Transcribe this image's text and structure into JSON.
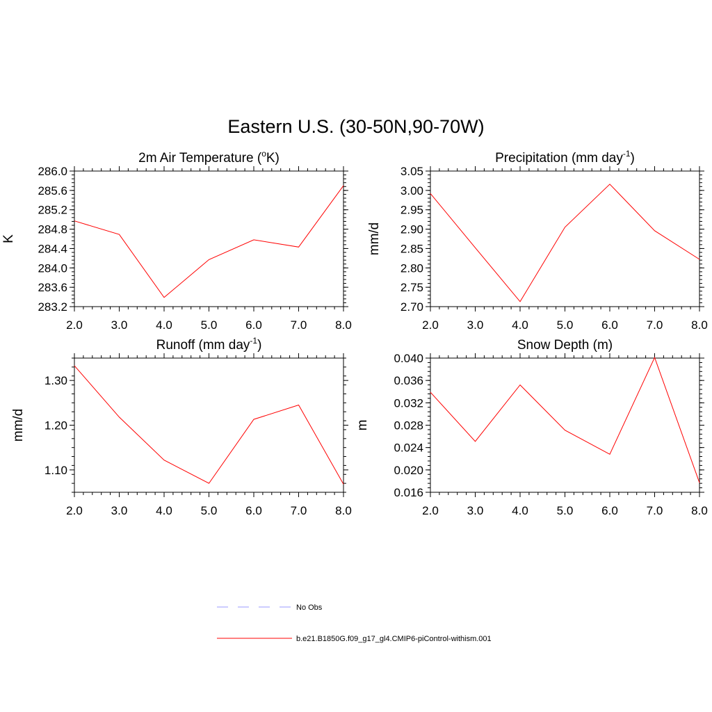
{
  "figure": {
    "title": "Eastern U.S. (30-50N,90-70W)"
  },
  "chart_data": [
    {
      "type": "line",
      "title": "2m Air Temperature (°K)",
      "title_parts": [
        "2m Air Temperature (",
        "o",
        "K)"
      ],
      "ylabel": "K",
      "x": [
        2,
        3,
        4,
        5,
        6,
        7,
        8
      ],
      "xticks": [
        "2.0",
        "3.0",
        "4.0",
        "5.0",
        "6.0",
        "7.0",
        "8.0"
      ],
      "xlim": [
        2,
        8
      ],
      "ylim": [
        283.2,
        286.0
      ],
      "yticks": [
        "283.2",
        "283.6",
        "284.0",
        "284.4",
        "284.8",
        "285.2",
        "285.6",
        "286.0"
      ],
      "ytick_values": [
        283.2,
        283.6,
        284.0,
        284.4,
        284.8,
        285.2,
        285.6,
        286.0
      ],
      "series": [
        {
          "values": [
            284.97,
            284.69,
            283.39,
            284.17,
            284.58,
            284.43,
            285.7
          ],
          "color": "#ff0000"
        }
      ]
    },
    {
      "type": "line",
      "title": "Precipitation (mm day-1)",
      "title_parts": [
        "Precipitation (mm day",
        "-1",
        ")"
      ],
      "ylabel": "mm/d",
      "x": [
        2,
        3,
        4,
        5,
        6,
        7,
        8
      ],
      "xticks": [
        "2.0",
        "3.0",
        "4.0",
        "5.0",
        "6.0",
        "7.0",
        "8.0"
      ],
      "xlim": [
        2,
        8
      ],
      "ylim": [
        2.7,
        3.05
      ],
      "yticks": [
        "2.70",
        "2.75",
        "2.80",
        "2.85",
        "2.90",
        "2.95",
        "3.00",
        "3.05"
      ],
      "ytick_values": [
        2.7,
        2.75,
        2.8,
        2.85,
        2.9,
        2.95,
        3.0,
        3.05
      ],
      "series": [
        {
          "values": [
            2.992,
            2.852,
            2.713,
            2.905,
            3.016,
            2.896,
            2.822
          ],
          "color": "#ff0000"
        }
      ]
    },
    {
      "type": "line",
      "title": "Runoff (mm day-1)",
      "title_parts": [
        "Runoff (mm day",
        "-1",
        ")"
      ],
      "ylabel": "mm/d",
      "x": [
        2,
        3,
        4,
        5,
        6,
        7,
        8
      ],
      "xticks": [
        "2.0",
        "3.0",
        "4.0",
        "5.0",
        "6.0",
        "7.0",
        "8.0"
      ],
      "xlim": [
        2,
        8
      ],
      "ylim": [
        1.05,
        1.35
      ],
      "yticks": [
        "1.10",
        "1.20",
        "1.30"
      ],
      "ytick_values": [
        1.1,
        1.2,
        1.3
      ],
      "series": [
        {
          "values": [
            1.333,
            1.218,
            1.122,
            1.07,
            1.213,
            1.245,
            1.068
          ],
          "color": "#ff0000"
        }
      ]
    },
    {
      "type": "line",
      "title": "Snow Depth (m)",
      "title_parts": [
        "Snow Depth (m)",
        "",
        ""
      ],
      "ylabel": "m",
      "x": [
        2,
        3,
        4,
        5,
        6,
        7,
        8
      ],
      "xticks": [
        "2.0",
        "3.0",
        "4.0",
        "5.0",
        "6.0",
        "7.0",
        "8.0"
      ],
      "xlim": [
        2,
        8
      ],
      "ylim": [
        0.016,
        0.04
      ],
      "yticks": [
        "0.016",
        "0.020",
        "0.024",
        "0.028",
        "0.032",
        "0.036",
        "0.040"
      ],
      "ytick_values": [
        0.016,
        0.02,
        0.024,
        0.028,
        0.032,
        0.036,
        0.04
      ],
      "series": [
        {
          "values": [
            0.0339,
            0.0251,
            0.0352,
            0.0271,
            0.0228,
            0.0401,
            0.0177
          ],
          "color": "#ff0000"
        }
      ]
    }
  ],
  "legend": {
    "items": [
      {
        "label": "No Obs",
        "color": "#9999ff",
        "style": "dashed"
      },
      {
        "label": "b.e21.B1850G.f09_g17_gl4.CMIP6-piControl-withism.001",
        "color": "#ff0000",
        "style": "solid"
      }
    ]
  }
}
